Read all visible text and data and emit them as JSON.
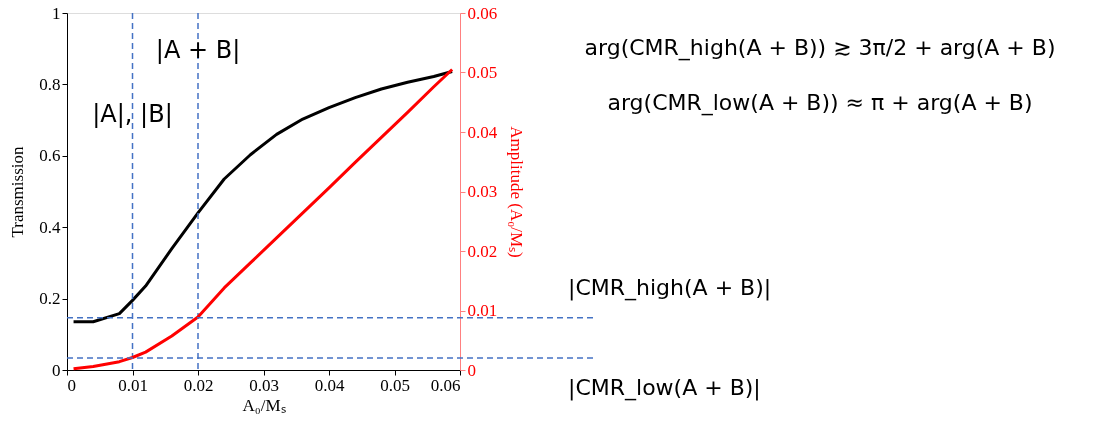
{
  "chart_data": {
    "type": "line",
    "xlabel": "A₀/Mₛ",
    "ylabel": "Transmission",
    "y2label": "Amplitude (A₀/Mₛ)",
    "x": [
      0.001,
      0.004,
      0.008,
      0.01,
      0.012,
      0.016,
      0.02,
      0.024,
      0.028,
      0.032,
      0.036,
      0.04,
      0.044,
      0.048,
      0.052,
      0.056,
      0.0588
    ],
    "series": [
      {
        "color": "#000000",
        "values": [
          0.135,
          0.135,
          0.158,
          0.195,
          0.235,
          0.34,
          0.44,
          0.535,
          0.603,
          0.66,
          0.703,
          0.735,
          0.763,
          0.787,
          0.806,
          0.822,
          0.836
        ]
      },
      {
        "color": "#ff0000",
        "axis": "y2",
        "values": [
          0.0002,
          0.0006,
          0.0014,
          0.0021,
          0.003,
          0.0057,
          0.0089,
          0.0138,
          0.018,
          0.0222,
          0.0264,
          0.0306,
          0.0349,
          0.0391,
          0.0433,
          0.0476,
          0.0505
        ]
      }
    ],
    "xlim": [
      0,
      0.06
    ],
    "xticks": [
      0,
      0.01,
      0.02,
      0.03,
      0.04,
      0.05,
      0.06
    ],
    "ylim": [
      0,
      1
    ],
    "yticks": [
      0,
      0.2,
      0.4,
      0.6,
      0.8,
      1
    ],
    "y2lim": [
      0,
      0.06
    ],
    "y2ticks": [
      0,
      0.01,
      0.02,
      0.03,
      0.04,
      0.05,
      0.06
    ],
    "ref_lines": [
      {
        "axis": "x",
        "value": 0.01,
        "color": "#4472c4",
        "line_style": "dashed"
      },
      {
        "axis": "x",
        "value": 0.02,
        "color": "#4472c4",
        "line_style": "dashed"
      },
      {
        "axis": "y2",
        "value": 0.0088,
        "label": "|CMR_high(A + B)|",
        "color": "#4472c4",
        "line_style": "dashed"
      },
      {
        "axis": "y2",
        "value": 0.002,
        "label": "|CMR_low(A + B)|",
        "color": "#4472c4",
        "line_style": "dashed"
      }
    ],
    "annotations": [
      {
        "text": "|A|, |B|",
        "x": 0.01,
        "y": 0.68
      },
      {
        "text": "|A + B|",
        "x": 0.02,
        "y": 0.86
      },
      "arg(CMR_high(A + B)) ≳ 3π/2 + arg(A + B)",
      "arg(CMR_low(A + B)) ≈ π + arg(A + B)"
    ],
    "grid": false,
    "line_style": "solid",
    "marker": "none"
  }
}
